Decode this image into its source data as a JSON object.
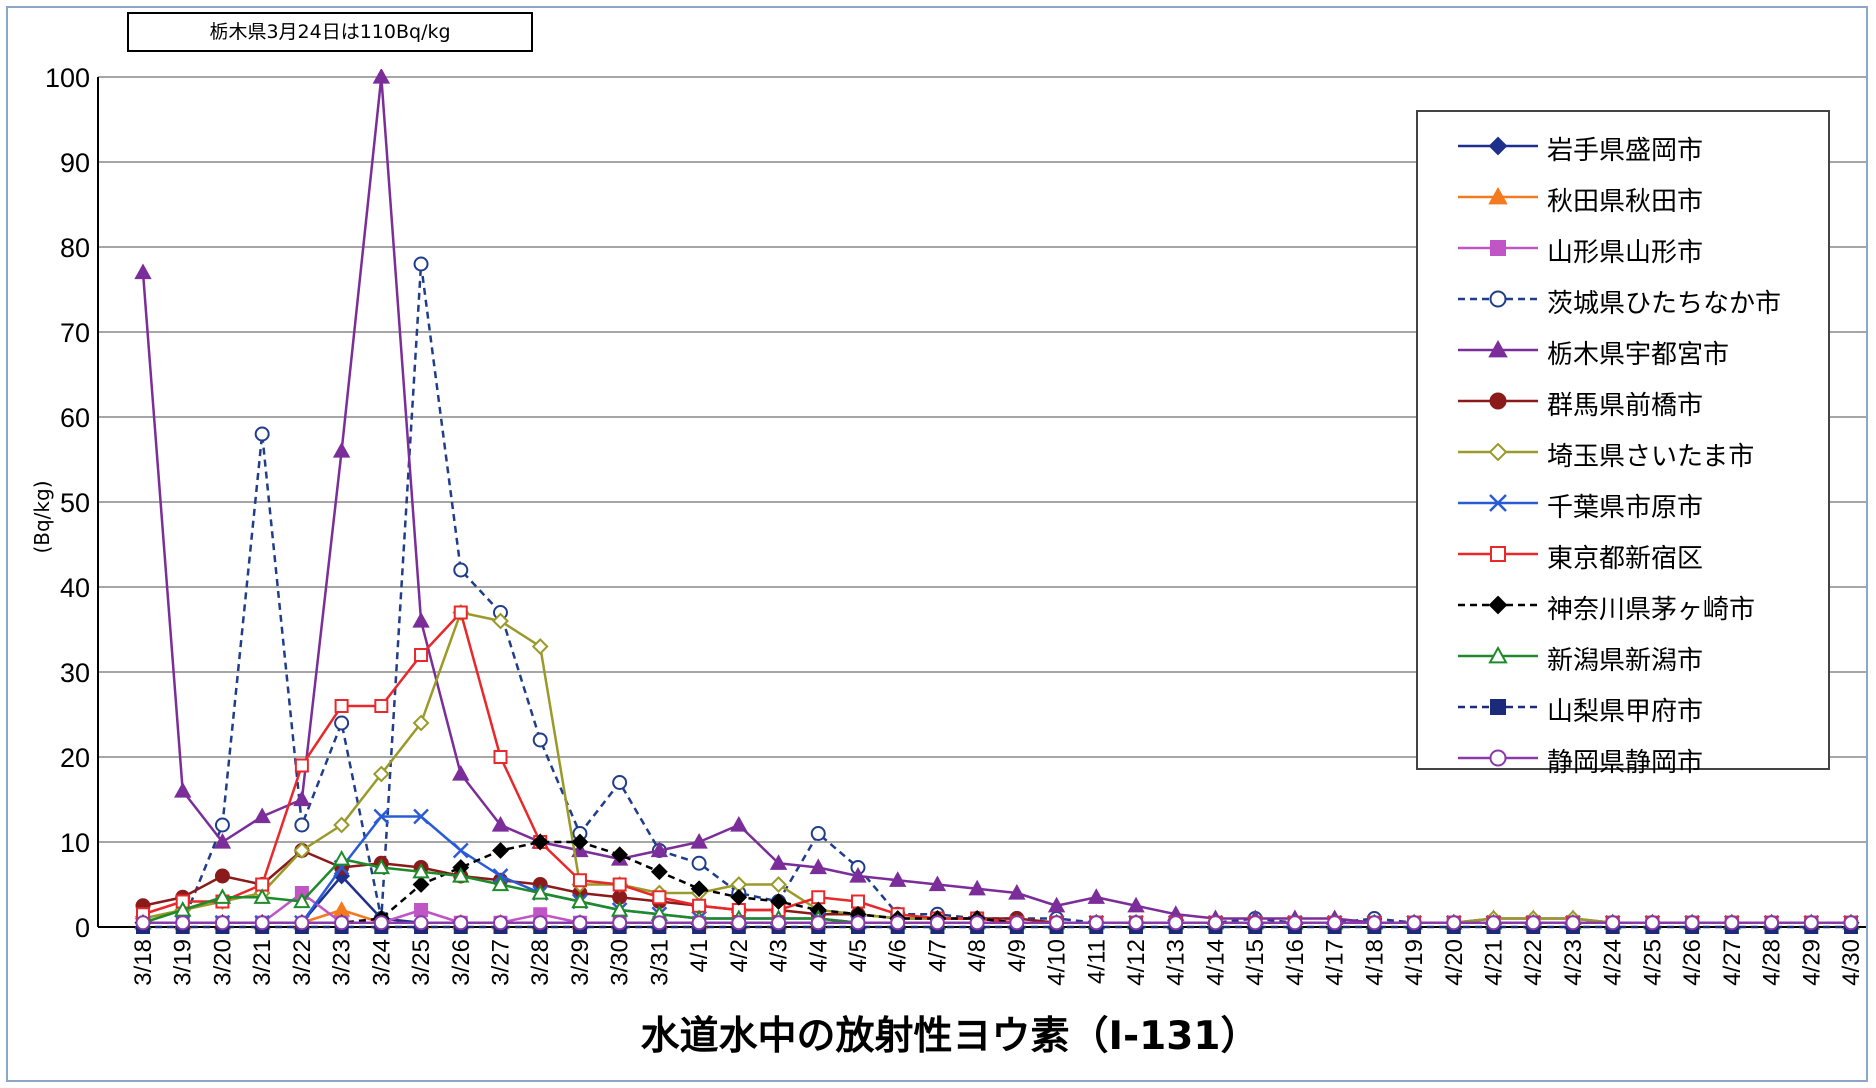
{
  "note": "栃木県3月24日は110Bq/kg",
  "chart_data": {
    "type": "line",
    "title": "水道水中の放射性ヨウ素（I-131）",
    "ylabel": "(Bq/kg)",
    "xlabel": "",
    "ylim": [
      0,
      100
    ],
    "yticks": [
      0,
      10,
      20,
      30,
      40,
      50,
      60,
      70,
      80,
      90,
      100
    ],
    "grid": "horizontal",
    "legend_position": "right",
    "categories": [
      "3/18",
      "3/19",
      "3/20",
      "3/21",
      "3/22",
      "3/23",
      "3/24",
      "3/25",
      "3/26",
      "3/27",
      "3/28",
      "3/29",
      "3/30",
      "3/31",
      "4/1",
      "4/2",
      "4/3",
      "4/4",
      "4/5",
      "4/6",
      "4/7",
      "4/8",
      "4/9",
      "4/10",
      "4/11",
      "4/12",
      "4/13",
      "4/14",
      "4/15",
      "4/16",
      "4/17",
      "4/18",
      "4/19",
      "4/20",
      "4/21",
      "4/22",
      "4/23",
      "4/24",
      "4/25",
      "4/26",
      "4/27",
      "4/28",
      "4/29",
      "4/30"
    ],
    "series": [
      {
        "name": "岩手県盛岡市",
        "color": "#1f2f8c",
        "dash": false,
        "marker": "diamond",
        "filled": true,
        "values": [
          0.5,
          0.5,
          0.5,
          0.5,
          0.5,
          6,
          1,
          0.5,
          0.5,
          0.5,
          0.5,
          0.5,
          0.5,
          0.5,
          0.5,
          0.5,
          0.5,
          0.5,
          0.5,
          0.5,
          0.5,
          0.5,
          0.5,
          0.5,
          0.5,
          0.5,
          0.5,
          0.5,
          0.5,
          0.5,
          0.5,
          0.5,
          0.5,
          0.5,
          0.5,
          0.5,
          0.5,
          0.5,
          0.5,
          0.5,
          0.5,
          0.5,
          0.5,
          0.5
        ]
      },
      {
        "name": "秋田県秋田市",
        "color": "#f47a20",
        "dash": false,
        "marker": "triangle",
        "filled": true,
        "values": [
          0.5,
          0.5,
          0.5,
          0.5,
          0.5,
          2,
          0.5,
          0.5,
          0.5,
          0.5,
          0.5,
          0.5,
          0.5,
          0.5,
          0.5,
          0.5,
          0.5,
          0.5,
          0.5,
          0.5,
          0.5,
          0.5,
          0.5,
          0.5,
          0.5,
          0.5,
          0.5,
          0.5,
          0.5,
          0.5,
          0.5,
          0.5,
          0.5,
          0.5,
          0.5,
          0.5,
          0.5,
          0.5,
          0.5,
          0.5,
          0.5,
          0.5,
          0.5,
          0.5
        ]
      },
      {
        "name": "山形県山形市",
        "color": "#c055c5",
        "dash": false,
        "marker": "square",
        "filled": true,
        "values": [
          0.5,
          0.5,
          0.5,
          0.5,
          4,
          0.5,
          0.5,
          2,
          0.5,
          0.5,
          1.5,
          0.5,
          0.5,
          0.5,
          0.5,
          0.5,
          0.5,
          0.5,
          0.5,
          0.5,
          0.5,
          0.5,
          0.5,
          0.5,
          0.5,
          0.5,
          0.5,
          0.5,
          0.5,
          0.5,
          0.5,
          0.5,
          0.5,
          0.5,
          0.5,
          0.5,
          0.5,
          0.5,
          0.5,
          0.5,
          0.5,
          0.5,
          0.5,
          0.5
        ]
      },
      {
        "name": "茨城県ひたちなか市",
        "color": "#1f3d8a",
        "dash": true,
        "marker": "circle",
        "filled": false,
        "values": [
          0.5,
          0.5,
          12,
          58,
          12,
          24,
          1,
          78,
          42,
          37,
          22,
          11,
          17,
          9,
          7.5,
          4,
          3,
          11,
          7,
          1.5,
          1.5,
          1,
          1,
          1,
          0.5,
          0.5,
          0.5,
          0.5,
          1,
          0.5,
          0.5,
          1,
          0.5,
          0.5,
          0.5,
          0.5,
          0.5,
          0.5,
          0.5,
          0.5,
          0.5,
          0.5,
          0.5,
          0.5
        ]
      },
      {
        "name": "栃木県宇都宮市",
        "color": "#7b2d9a",
        "dash": false,
        "marker": "triangle",
        "filled": true,
        "values": [
          77,
          16,
          10,
          13,
          15,
          56,
          110,
          36,
          18,
          12,
          10,
          9,
          8,
          9,
          10,
          12,
          7.5,
          7,
          6,
          5.5,
          5,
          4.5,
          4,
          2.5,
          3.5,
          2.5,
          1.5,
          1,
          1,
          1,
          1,
          0.5,
          0.5,
          0.5,
          1,
          1,
          1,
          0.5,
          0.5,
          0.5,
          0.5,
          0.5,
          0.5,
          0.5
        ]
      },
      {
        "name": "群馬県前橋市",
        "color": "#8b1a1a",
        "dash": false,
        "marker": "circle",
        "filled": true,
        "values": [
          2.5,
          3.5,
          6,
          5,
          9,
          7,
          7.5,
          7,
          6,
          5.5,
          5,
          4,
          3.5,
          3,
          2.5,
          2,
          2,
          1.5,
          1.5,
          1,
          1,
          1,
          1,
          0.5,
          0.5,
          0.5,
          0.5,
          0.5,
          0.5,
          0.5,
          0.5,
          0.5,
          0.5,
          0.5,
          0.5,
          0.5,
          0.5,
          0.5,
          0.5,
          0.5,
          0.5,
          0.5,
          0.5,
          0.5
        ]
      },
      {
        "name": "埼玉県さいたま市",
        "color": "#9a9a2a",
        "dash": false,
        "marker": "diamond",
        "filled": false,
        "values": [
          1,
          2,
          3,
          4,
          9,
          12,
          18,
          24,
          37,
          36,
          33,
          5,
          5,
          4,
          4,
          5,
          5,
          2,
          1.5,
          1,
          1,
          1,
          0.5,
          0.5,
          0.5,
          0.5,
          0.5,
          0.5,
          0.5,
          0.5,
          0.5,
          0.5,
          0.5,
          0.5,
          1,
          1,
          1,
          0.5,
          0.5,
          0.5,
          0.5,
          0.5,
          0.5,
          0.5
        ]
      },
      {
        "name": "千葉県市原市",
        "color": "#2a5bd7",
        "dash": false,
        "marker": "x",
        "filled": false,
        "values": [
          0.5,
          0.5,
          0.5,
          0.5,
          0.5,
          7,
          13,
          13,
          9,
          6,
          4,
          3,
          2,
          1.5,
          1,
          1,
          1,
          1,
          0.5,
          0.5,
          0.5,
          0.5,
          0.5,
          0.5,
          0.5,
          0.5,
          0.5,
          0.5,
          0.5,
          0.5,
          0.5,
          0.5,
          0.5,
          0.5,
          0.5,
          0.5,
          0.5,
          0.5,
          0.5,
          0.5,
          0.5,
          0.5,
          0.5,
          0.5
        ]
      },
      {
        "name": "東京都新宿区",
        "color": "#e8282a",
        "dash": false,
        "marker": "square",
        "filled": false,
        "values": [
          1.5,
          3,
          3,
          5,
          19,
          26,
          26,
          32,
          37,
          20,
          10,
          5.5,
          5,
          3.5,
          2.5,
          2,
          2,
          3.5,
          3,
          1.5,
          1,
          1,
          0.5,
          0.5,
          0.5,
          0.5,
          0.5,
          0.5,
          0.5,
          0.5,
          0.5,
          0.5,
          0.5,
          0.5,
          0.5,
          0.5,
          0.5,
          0.5,
          0.5,
          0.5,
          0.5,
          0.5,
          0.5,
          0.5
        ]
      },
      {
        "name": "神奈川県茅ヶ崎市",
        "color": "#000000",
        "dash": true,
        "marker": "diamond",
        "filled": true,
        "values": [
          0.5,
          0.5,
          0.5,
          0.5,
          0.5,
          0.5,
          1,
          5,
          7,
          9,
          10,
          10,
          8.5,
          6.5,
          4.5,
          3.5,
          3,
          2,
          1.5,
          1,
          1,
          1,
          0.5,
          0.5,
          0.5,
          0.5,
          0.5,
          0.5,
          0.5,
          0.5,
          0.5,
          0.5,
          0.5,
          0.5,
          0.5,
          0.5,
          0.5,
          0.5,
          0.5,
          0.5,
          0.5,
          0.5,
          0.5,
          0.5
        ]
      },
      {
        "name": "新潟県新潟市",
        "color": "#1e8a2a",
        "dash": false,
        "marker": "triangle",
        "filled": false,
        "values": [
          0.5,
          2,
          3.5,
          3.5,
          3,
          8,
          7,
          6.5,
          6,
          5,
          4,
          3,
          2,
          1.5,
          1,
          1,
          1,
          1,
          0.5,
          0.5,
          0.5,
          0.5,
          0.5,
          0.5,
          0.5,
          0.5,
          0.5,
          0.5,
          0.5,
          0.5,
          0.5,
          0.5,
          0.5,
          0.5,
          0.5,
          0.5,
          0.5,
          0.5,
          0.5,
          0.5,
          0.5,
          0.5,
          0.5,
          0.5
        ]
      },
      {
        "name": "山梨県甲府市",
        "color": "#1c2a7a",
        "dash": true,
        "marker": "square",
        "filled": true,
        "values": [
          0,
          0,
          0,
          0,
          0,
          0,
          0,
          0,
          0,
          0,
          0,
          0,
          0,
          0,
          0,
          0,
          0,
          0,
          0,
          0,
          0,
          0,
          0,
          0,
          0,
          0,
          0,
          0,
          0,
          0,
          0,
          0,
          0,
          0,
          0,
          0,
          0,
          0,
          0,
          0,
          0,
          0,
          0,
          0
        ]
      },
      {
        "name": "静岡県静岡市",
        "color": "#8a3aa8",
        "dash": false,
        "marker": "circle",
        "filled": false,
        "values": [
          0.5,
          0.5,
          0.5,
          0.5,
          0.5,
          0.5,
          0.5,
          0.5,
          0.5,
          0.5,
          0.5,
          0.5,
          0.5,
          0.5,
          0.5,
          0.5,
          0.5,
          0.5,
          0.5,
          0.5,
          0.5,
          0.5,
          0.5,
          0.5,
          0.5,
          0.5,
          0.5,
          0.5,
          0.5,
          0.5,
          0.5,
          0.5,
          0.5,
          0.5,
          0.5,
          0.5,
          0.5,
          0.5,
          0.5,
          0.5,
          0.5,
          0.5,
          0.5,
          0.5
        ]
      }
    ]
  }
}
